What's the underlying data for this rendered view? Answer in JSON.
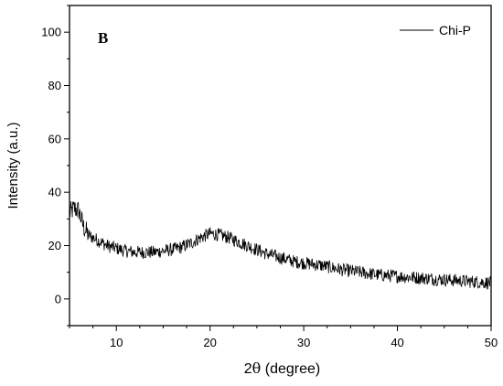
{
  "chart_data": {
    "type": "line",
    "panel_label": "B",
    "xlabel_main": "2",
    "xlabel_theta": "θ",
    "xlabel_rest": " (degree)",
    "ylabel": "Intensity (a.u.)",
    "xlim": [
      5,
      50
    ],
    "ylim": [
      -10,
      110
    ],
    "xticks": [
      10,
      20,
      30,
      40,
      50
    ],
    "yticks": [
      0,
      20,
      40,
      60,
      80,
      100
    ],
    "grid": false,
    "legend_position": "top-right",
    "series": [
      {
        "name": "Chi-P",
        "color": "#000000",
        "baseline_points": [
          [
            5.0,
            32
          ],
          [
            5.5,
            34
          ],
          [
            6.0,
            33
          ],
          [
            6.5,
            27
          ],
          [
            7.0,
            24
          ],
          [
            8.0,
            22
          ],
          [
            9.0,
            20
          ],
          [
            10.0,
            19
          ],
          [
            11.0,
            18
          ],
          [
            12.0,
            17.5
          ],
          [
            13.0,
            17.5
          ],
          [
            14.0,
            17.5
          ],
          [
            15.0,
            18
          ],
          [
            16.0,
            18.5
          ],
          [
            17.0,
            19.5
          ],
          [
            18.0,
            21
          ],
          [
            19.0,
            23
          ],
          [
            20.0,
            24.5
          ],
          [
            21.0,
            24
          ],
          [
            22.0,
            23
          ],
          [
            23.0,
            21.5
          ],
          [
            24.0,
            20
          ],
          [
            25.0,
            18.5
          ],
          [
            26.0,
            17
          ],
          [
            27.0,
            16
          ],
          [
            28.0,
            15
          ],
          [
            29.0,
            14
          ],
          [
            30.0,
            13.5
          ],
          [
            32.0,
            12.5
          ],
          [
            34.0,
            11
          ],
          [
            36.0,
            10
          ],
          [
            38.0,
            9
          ],
          [
            40.0,
            8.5
          ],
          [
            42.0,
            8
          ],
          [
            44.0,
            7.5
          ],
          [
            46.0,
            7
          ],
          [
            48.0,
            6.5
          ],
          [
            50.0,
            6
          ]
        ],
        "noise_amplitude": 2.5,
        "step": 0.05
      }
    ]
  }
}
